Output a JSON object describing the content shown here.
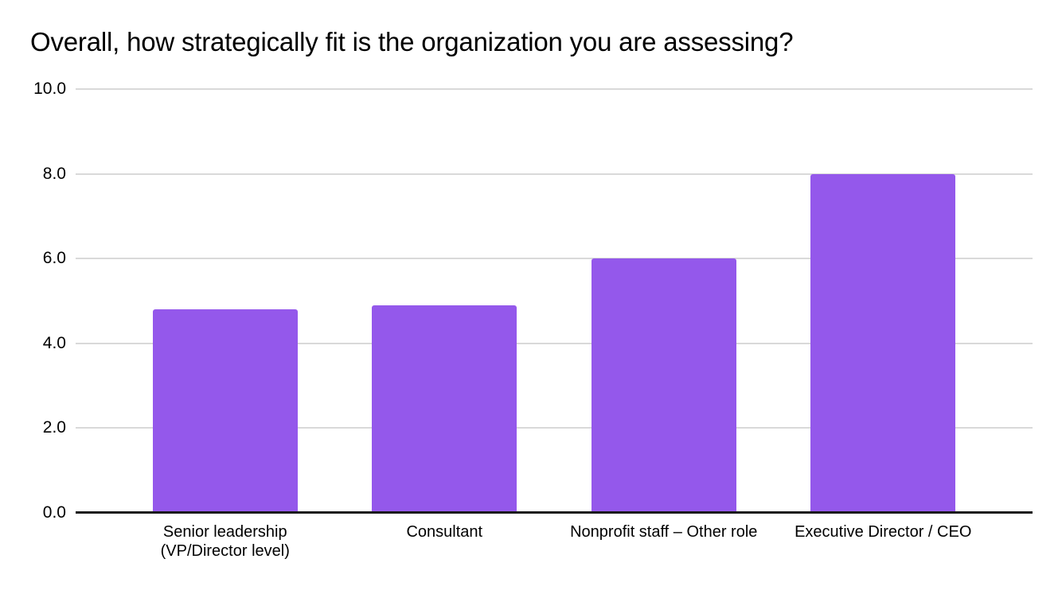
{
  "chart_data": {
    "type": "bar",
    "title": "Overall, how strategically fit is the organization you are assessing?",
    "categories": [
      "Senior leadership (VP/Director level)",
      "Consultant",
      "Nonprofit staff – Other role",
      "Executive Director / CEO"
    ],
    "values": [
      4.8,
      4.9,
      6.0,
      8.0
    ],
    "xlabel": "",
    "ylabel": "",
    "ylim": [
      0,
      10
    ],
    "yticks": [
      0,
      2,
      4,
      6,
      8,
      10
    ],
    "ytick_labels": [
      "0.0",
      "2.0",
      "4.0",
      "6.0",
      "8.0",
      "10.0"
    ],
    "grid": true,
    "legend": "none",
    "colors": {
      "bar": "#9458EB",
      "gridline": "#d9d9d9",
      "axis_line": "#1a1a1a",
      "text": "#000000",
      "background": "#ffffff"
    }
  }
}
